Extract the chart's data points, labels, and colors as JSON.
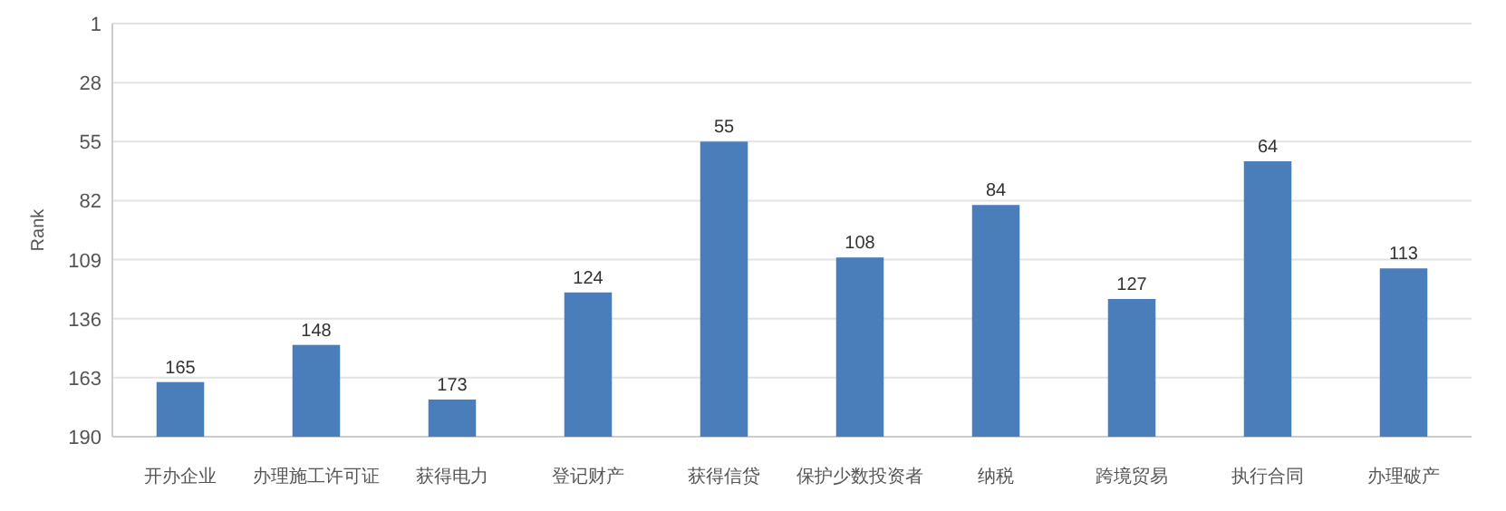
{
  "chart_data": {
    "type": "bar",
    "ylabel": "Rank",
    "categories": [
      "开办企业",
      "办理施工许可证",
      "获得电力",
      "登记财产",
      "获得信贷",
      "保护少数投资者",
      "纳税",
      "跨境贸易",
      "执行合同",
      "办理破产"
    ],
    "base": [
      190,
      190,
      190,
      190,
      190,
      190,
      190,
      190,
      190,
      190
    ],
    "values": [
      -25,
      -42,
      -17,
      -66,
      -135,
      -82,
      -106,
      -63,
      -126,
      -77
    ],
    "value_labels": [
      "165",
      "148",
      "173",
      "124",
      "55",
      "108",
      "84",
      "127",
      "64",
      "113"
    ],
    "color": "#4a7ebb",
    "ylim": [
      190,
      1
    ],
    "yticks": [
      1,
      28,
      55,
      82,
      109,
      136,
      163,
      190
    ],
    "grid": "y"
  }
}
